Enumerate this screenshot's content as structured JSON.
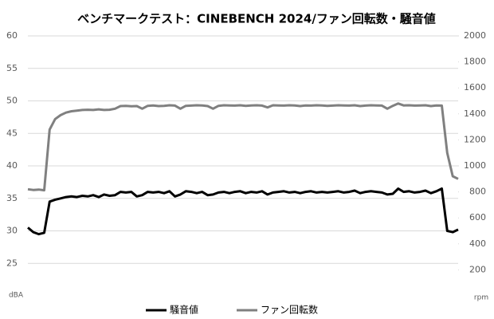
{
  "chart_data": {
    "type": "line",
    "title": "ベンチマークテスト：CINEBENCH 2024/ファン回転数・騒音値",
    "y_label": "dBA",
    "y2_label": "rpm",
    "ylim": [
      20,
      60
    ],
    "yticks": [
      25,
      30,
      35,
      40,
      45,
      50,
      55,
      60
    ],
    "y2lim": [
      0,
      2000
    ],
    "y2ticks": [
      200,
      400,
      600,
      800,
      1000,
      1200,
      1400,
      1600,
      1800,
      2000
    ],
    "grid": true,
    "legend": "bottom",
    "series": [
      {
        "name": "騒音値",
        "color": "#000000",
        "axis": "y",
        "values": [
          30.5,
          29.8,
          29.5,
          29.7,
          34.5,
          34.8,
          35.0,
          35.2,
          35.3,
          35.2,
          35.4,
          35.3,
          35.5,
          35.2,
          35.6,
          35.4,
          35.5,
          36.0,
          35.9,
          36.0,
          35.3,
          35.5,
          36.0,
          35.9,
          36.0,
          35.8,
          36.1,
          35.3,
          35.6,
          36.1,
          36.0,
          35.8,
          36.0,
          35.5,
          35.6,
          35.9,
          36.0,
          35.8,
          36.0,
          36.1,
          35.8,
          36.0,
          35.9,
          36.1,
          35.6,
          35.9,
          36.0,
          36.1,
          35.9,
          36.0,
          35.8,
          36.0,
          36.1,
          35.9,
          36.0,
          35.9,
          36.0,
          36.1,
          35.9,
          36.0,
          36.2,
          35.8,
          36.0,
          36.1,
          36.0,
          35.9,
          35.6,
          35.7,
          36.5,
          36.0,
          36.1,
          35.9,
          36.0,
          36.2,
          35.8,
          36.1,
          36.5,
          30.0,
          29.8,
          30.2
        ]
      },
      {
        "name": "ファン回転数",
        "color": "#808080",
        "axis": "y2",
        "values": [
          820,
          815,
          818,
          812,
          1280,
          1360,
          1390,
          1410,
          1420,
          1425,
          1430,
          1432,
          1430,
          1435,
          1430,
          1432,
          1440,
          1460,
          1462,
          1458,
          1460,
          1440,
          1462,
          1465,
          1460,
          1462,
          1466,
          1464,
          1440,
          1462,
          1464,
          1466,
          1465,
          1460,
          1440,
          1462,
          1466,
          1465,
          1464,
          1466,
          1462,
          1465,
          1466,
          1464,
          1450,
          1466,
          1465,
          1464,
          1466,
          1465,
          1460,
          1465,
          1464,
          1466,
          1465,
          1462,
          1464,
          1466,
          1465,
          1464,
          1466,
          1460,
          1464,
          1466,
          1465,
          1464,
          1440,
          1462,
          1480,
          1465,
          1466,
          1464,
          1465,
          1466,
          1460,
          1465,
          1464,
          1100,
          920,
          900
        ]
      }
    ]
  }
}
